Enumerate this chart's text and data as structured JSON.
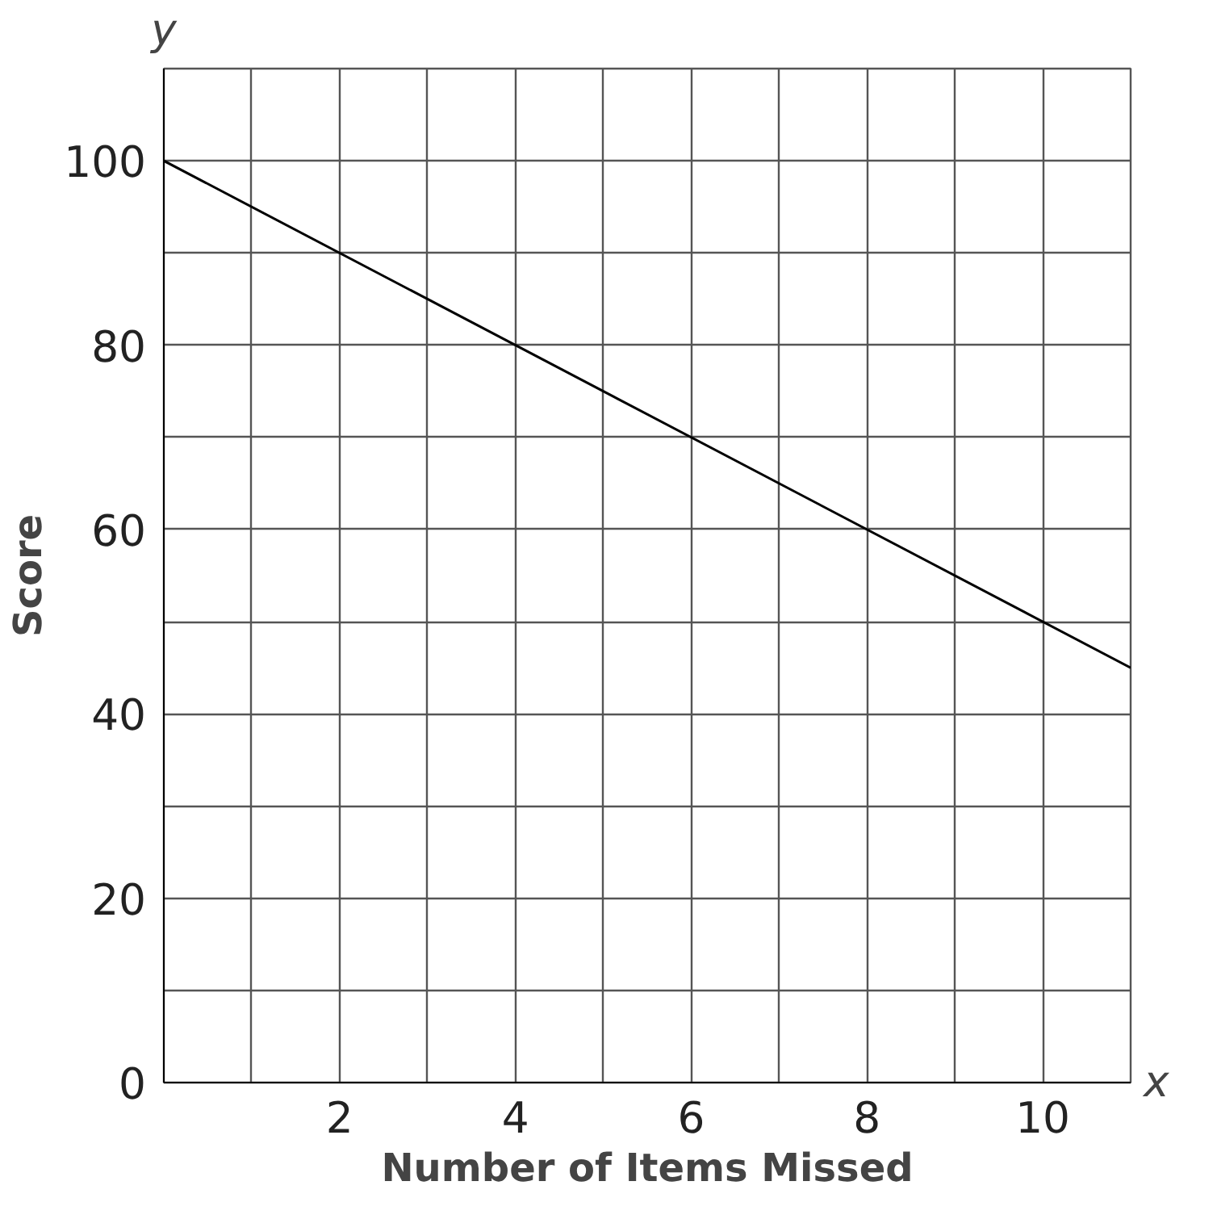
{
  "chart_data": {
    "type": "line",
    "xlabel": "Number of Items Missed",
    "ylabel": "Score",
    "annotations": [
      "x",
      "y"
    ],
    "series": [
      {
        "x": [
          0,
          11
        ],
        "values": [
          100,
          45
        ],
        "color": "#000000"
      }
    ],
    "xlim": [
      0,
      11
    ],
    "ylim": [
      0,
      110
    ],
    "xticks": [
      {
        "value": 1,
        "label": null
      },
      2,
      {
        "value": 3,
        "label": null
      },
      4,
      {
        "value": 5,
        "label": null
      },
      6,
      {
        "value": 7,
        "label": null
      },
      8,
      {
        "value": 9,
        "label": null
      },
      10,
      {
        "value": 11,
        "label": null
      }
    ],
    "yticks": [
      0,
      {
        "value": 10,
        "label": null
      },
      20,
      {
        "value": 30,
        "label": null
      },
      40,
      {
        "value": 50,
        "label": null
      },
      60,
      {
        "value": 70,
        "label": null
      },
      80,
      {
        "value": 90,
        "label": null
      },
      100,
      {
        "value": 110,
        "label": null
      }
    ],
    "grid": true,
    "marker": "none",
    "line_style": "solid"
  }
}
